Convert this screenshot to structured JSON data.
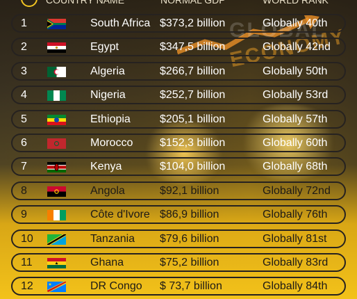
{
  "header": {
    "col_country": "COUNTRY NAME",
    "col_gdp": "NORMAL GDP",
    "col_rank": "WORLD RANK"
  },
  "watermark": {
    "line1": "GLOBAL",
    "line2": "ECONOMY"
  },
  "rows": [
    {
      "rank": "1",
      "country": "South Africa",
      "gdp": "$373,2 billion",
      "world_rank": "Globally 40th",
      "flag": "south-africa"
    },
    {
      "rank": "2",
      "country": "Egypt",
      "gdp": "$347,5 billion",
      "world_rank": "Globally 42nd",
      "flag": "egypt"
    },
    {
      "rank": "3",
      "country": "Algeria",
      "gdp": "$266,7 billion",
      "world_rank": "Globally 50th",
      "flag": "algeria"
    },
    {
      "rank": "4",
      "country": "Nigeria",
      "gdp": "$252,7 billion",
      "world_rank": "Globally 53rd",
      "flag": "nigeria"
    },
    {
      "rank": "5",
      "country": "Ethiopia",
      "gdp": "$205,1 billion",
      "world_rank": "Globally 57th",
      "flag": "ethiopia"
    },
    {
      "rank": "6",
      "country": "Morocco",
      "gdp": "$152,3 billion",
      "world_rank": "Globally 60th",
      "flag": "morocco"
    },
    {
      "rank": "7",
      "country": "Kenya",
      "gdp": "$104,0 billion",
      "world_rank": "Globally 68th",
      "flag": "kenya"
    },
    {
      "rank": "8",
      "country": "Angola",
      "gdp": "$92,1 billion",
      "world_rank": "Globally 72nd",
      "flag": "angola"
    },
    {
      "rank": "9",
      "country": "Côte d'Ivore",
      "gdp": "$86,9 billion",
      "world_rank": "Globally 76th",
      "flag": "cote-divoire"
    },
    {
      "rank": "10",
      "country": "Tanzania",
      "gdp": "$79,6 billion",
      "world_rank": "Globally 81st",
      "flag": "tanzania"
    },
    {
      "rank": "11",
      "country": "Ghana",
      "gdp": "$75,2 billion",
      "world_rank": "Globally 83rd",
      "flag": "ghana"
    },
    {
      "rank": "12",
      "country": "DR Congo",
      "gdp": "$ 73,7 billion",
      "world_rank": "Globally 84th",
      "flag": "dr-congo"
    }
  ],
  "colors": {
    "accent": "#f2c523",
    "row_border": "#262220"
  }
}
